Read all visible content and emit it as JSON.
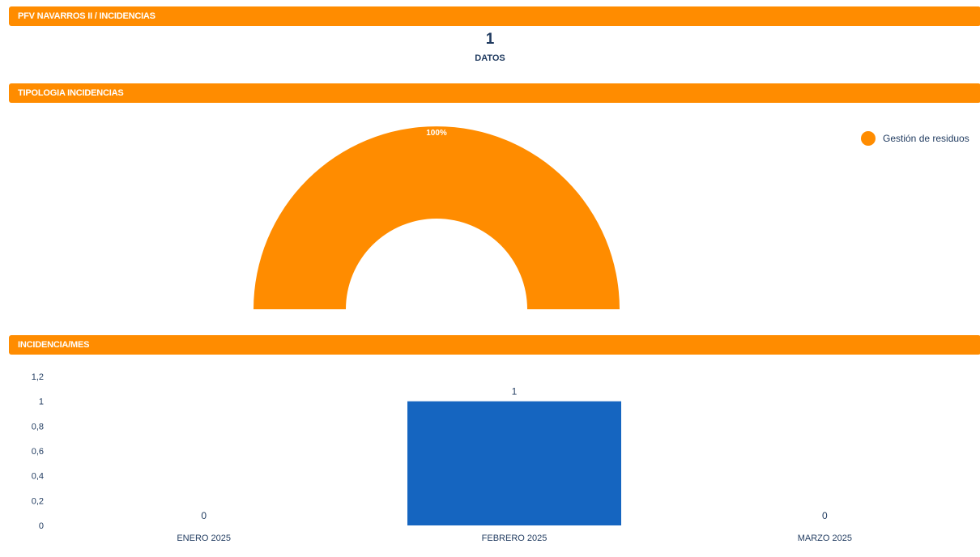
{
  "header": {
    "title": "PFV NAVARROS II / INCIDENCIAS"
  },
  "kpi": {
    "value": "1",
    "label": "DATOS"
  },
  "tipologia": {
    "section_title": "TIPOLOGIA INCIDENCIAS",
    "legend_label": "Gestión de residuos",
    "slice_label": "100%",
    "color": "#ff8c00",
    "chart_data": {
      "type": "pie",
      "categories": [
        "Gestión de residuos"
      ],
      "values": [
        100
      ],
      "labels": [
        "100%"
      ]
    }
  },
  "incidencia_mes": {
    "section_title": "INCIDENCIA/MES",
    "bar_color": "#1565c0",
    "chart_data": {
      "type": "bar",
      "categories": [
        "ENERO 2025",
        "FEBRERO 2025",
        "MARZO 2025"
      ],
      "values": [
        0,
        1,
        0
      ],
      "ylim": [
        0,
        1.2
      ],
      "yticks": [
        "0",
        "0,2",
        "0,4",
        "0,6",
        "0,8",
        "1",
        "1,2"
      ]
    }
  }
}
